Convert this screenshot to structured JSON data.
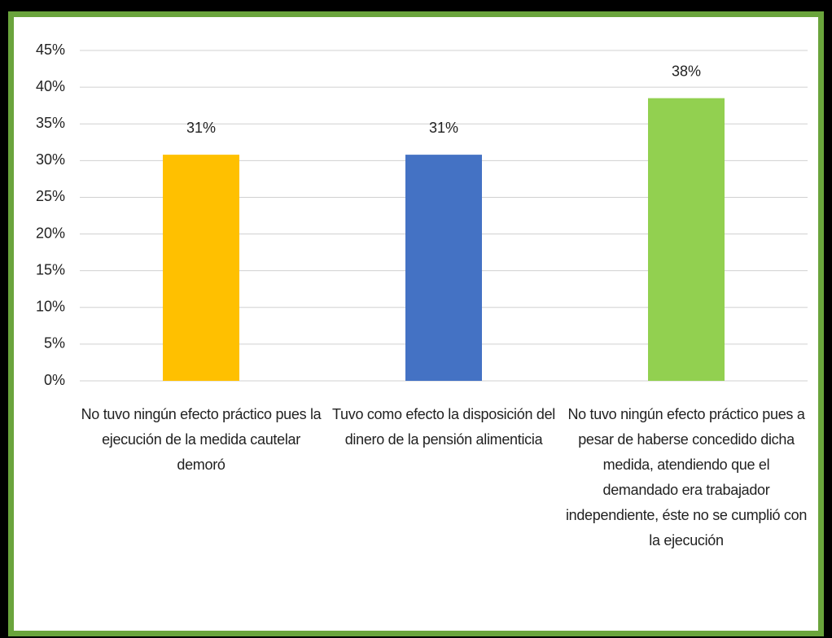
{
  "chart_data": {
    "type": "bar",
    "categories": [
      "No tuvo ningún efecto práctico pues la ejecución de la medida cautelar demoró",
      "Tuvo como efecto la disposición del dinero de la pensión alimenticia",
      "No tuvo ningún efecto práctico pues a pesar de haberse concedido dicha medida, atendiendo que el demandado era trabajador independiente, éste no se cumplió con la ejecución"
    ],
    "values": [
      30.8,
      30.8,
      38.5
    ],
    "value_labels": [
      "31%",
      "31%",
      "38%"
    ],
    "colors": [
      "#ffc000",
      "#4472c4",
      "#92d050"
    ],
    "ylim": [
      0,
      45
    ],
    "yticks": [
      {
        "value": 0,
        "label": "0%"
      },
      {
        "value": 5,
        "label": "5%"
      },
      {
        "value": 10,
        "label": "10%"
      },
      {
        "value": 15,
        "label": "15%"
      },
      {
        "value": 20,
        "label": "20%"
      },
      {
        "value": 25,
        "label": "25%"
      },
      {
        "value": 30,
        "label": "30%"
      },
      {
        "value": 35,
        "label": "35%"
      },
      {
        "value": 40,
        "label": "40%"
      },
      {
        "value": 45,
        "label": "45%"
      }
    ],
    "grid": true
  }
}
